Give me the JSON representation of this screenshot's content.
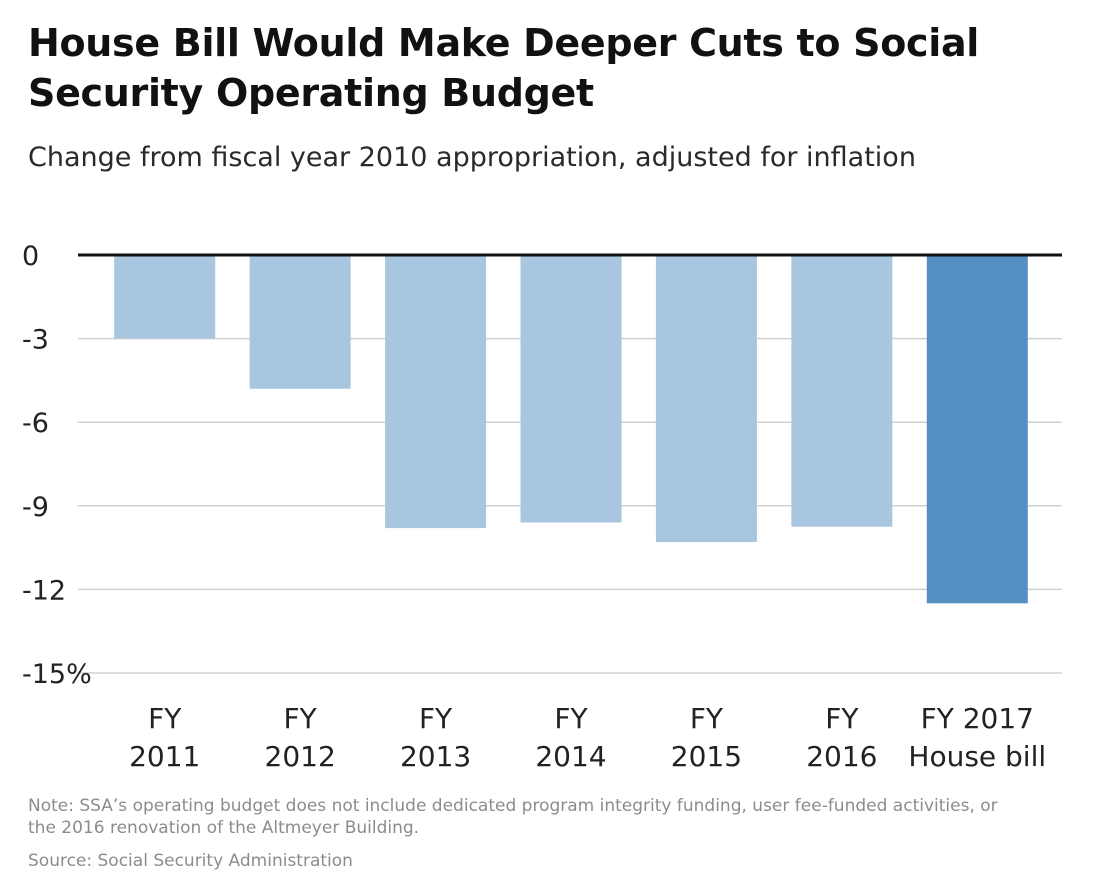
{
  "title": "House Bill Would Make Deeper Cuts to Social Security Operating Budget",
  "subtitle": "Change from fiscal year 2010 appropriation, adjusted for inflation",
  "note": "Note: SSA’s operating budget does not include dedicated program integrity funding, user fee-funded activities, or the 2016 renovation of the Altmeyer Building.",
  "source": "Source: Social Security Administration",
  "chart_data": {
    "type": "bar",
    "categories": [
      [
        "FY",
        "2011"
      ],
      [
        "FY",
        "2012"
      ],
      [
        "FY",
        "2013"
      ],
      [
        "FY",
        "2014"
      ],
      [
        "FY",
        "2015"
      ],
      [
        "FY",
        "2016"
      ],
      [
        "FY 2017",
        "House bill"
      ]
    ],
    "values": [
      -3.0,
      -4.8,
      -9.8,
      -9.6,
      -10.3,
      -9.75,
      -12.5
    ],
    "ylim": [
      -15,
      0
    ],
    "yticks": [
      0,
      -3,
      -6,
      -9,
      -12,
      -15
    ],
    "ytick_labels": [
      "0",
      "-3",
      "-6",
      "-9",
      "-12",
      "-15%"
    ],
    "grid": true,
    "colors": {
      "default_bar": "#a8c6e0",
      "highlight_bar": "#5490c2",
      "zero_line": "#111111",
      "grid": "#d0d0d0"
    },
    "highlight_index": 6
  }
}
